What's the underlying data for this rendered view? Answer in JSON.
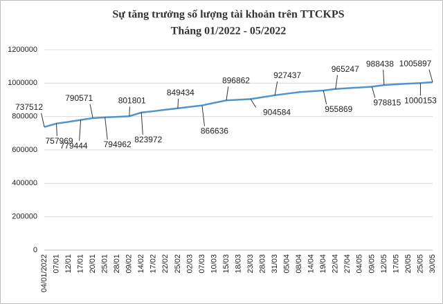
{
  "chart_data": {
    "type": "line",
    "title": "Sự tăng trưởng số lượng tài khoản trên TTCKPS",
    "subtitle": "Tháng 01/2022 - 05/2022",
    "categories": [
      "04/01/2022",
      "07/01",
      "12/01",
      "17/01",
      "20/01",
      "25/01",
      "28/01",
      "09/02",
      "14/02",
      "17/02",
      "22/02",
      "25/02",
      "02/03",
      "07/03",
      "10/03",
      "15/03",
      "18/03",
      "23/03",
      "28/03",
      "31/03",
      "05/04",
      "08/04",
      "14/04",
      "19/04",
      "22/04",
      "27/04",
      "04/05",
      "09/05",
      "12/05",
      "17/05",
      "20/05",
      "25/05",
      "30/05"
    ],
    "series": [
      {
        "color": "#4f94cd",
        "values": [
          737512,
          757969,
          768000,
          779444,
          790571,
          794962,
          798000,
          801801,
          823972,
          832000,
          841000,
          849434,
          858000,
          866636,
          882000,
          896862,
          900500,
          904584,
          916000,
          927437,
          937000,
          946000,
          951000,
          955869,
          965247,
          970000,
          974000,
          978815,
          988438,
          993000,
          997000,
          1000153,
          1005897
        ],
        "value_labels": [
          "737512",
          "757969",
          null,
          "779444",
          "790571",
          "794962",
          null,
          "801801",
          "823972",
          null,
          null,
          "849434",
          null,
          "866636",
          null,
          "896862",
          null,
          "904584",
          null,
          "927437",
          null,
          null,
          null,
          "955869",
          "965247",
          null,
          null,
          "978815",
          "988438",
          null,
          null,
          "1000153",
          "1005897"
        ]
      }
    ],
    "ylim": [
      0,
      1200000
    ],
    "yticks": [
      0,
      200000,
      400000,
      600000,
      800000,
      1000000,
      1200000
    ],
    "grid": true
  }
}
